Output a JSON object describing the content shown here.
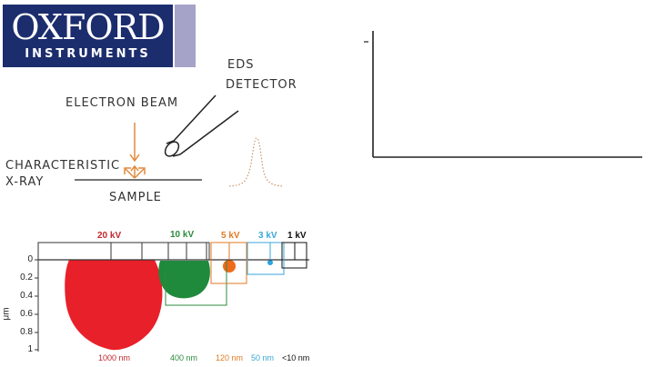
{
  "logo": {
    "name": "OXFORD",
    "sub": "INSTRUMENTS"
  },
  "labels": {
    "electron_beam": "ELECTRON BEAM",
    "eds_line1": "EDS",
    "eds_line2": "DETECTOR",
    "char_line1": "CHARACTERISTIC",
    "char_line2": "X-RAY",
    "sample": "SAMPLE"
  },
  "penetration": {
    "unit": "μm",
    "y_ticks": [
      "0",
      "0.2",
      "0.4",
      "0.6",
      "0.8",
      "1"
    ],
    "voltages": [
      {
        "label": "20 kV",
        "color": "#c0282d",
        "depth": "1000 nm",
        "depth_color": "#c0282d"
      },
      {
        "label": "10 kV",
        "color": "#2e8b3e",
        "depth": "400 nm",
        "depth_color": "#2e8b3e"
      },
      {
        "label": "5 kV",
        "color": "#e07a22",
        "depth": "120 nm",
        "depth_color": "#e07a22"
      },
      {
        "label": "3 kV",
        "color": "#3aa6d8",
        "depth": "50 nm",
        "depth_color": "#3aa6d8"
      },
      {
        "label": "1 kV",
        "color": "#111111",
        "depth": "<10 nm",
        "depth_color": "#111111"
      }
    ]
  },
  "colors": {
    "logo_blue": "#1c2d6e",
    "logo_stripe": "#a6a3c8",
    "arrow_orange": "#e08a3c",
    "spectrum_orange": "#c98a5a",
    "red_volume": "#e8202a",
    "green_volume": "#1f8a3c",
    "orange_volume": "#ef6a1a",
    "blue_volume": "#2aa3e0"
  }
}
